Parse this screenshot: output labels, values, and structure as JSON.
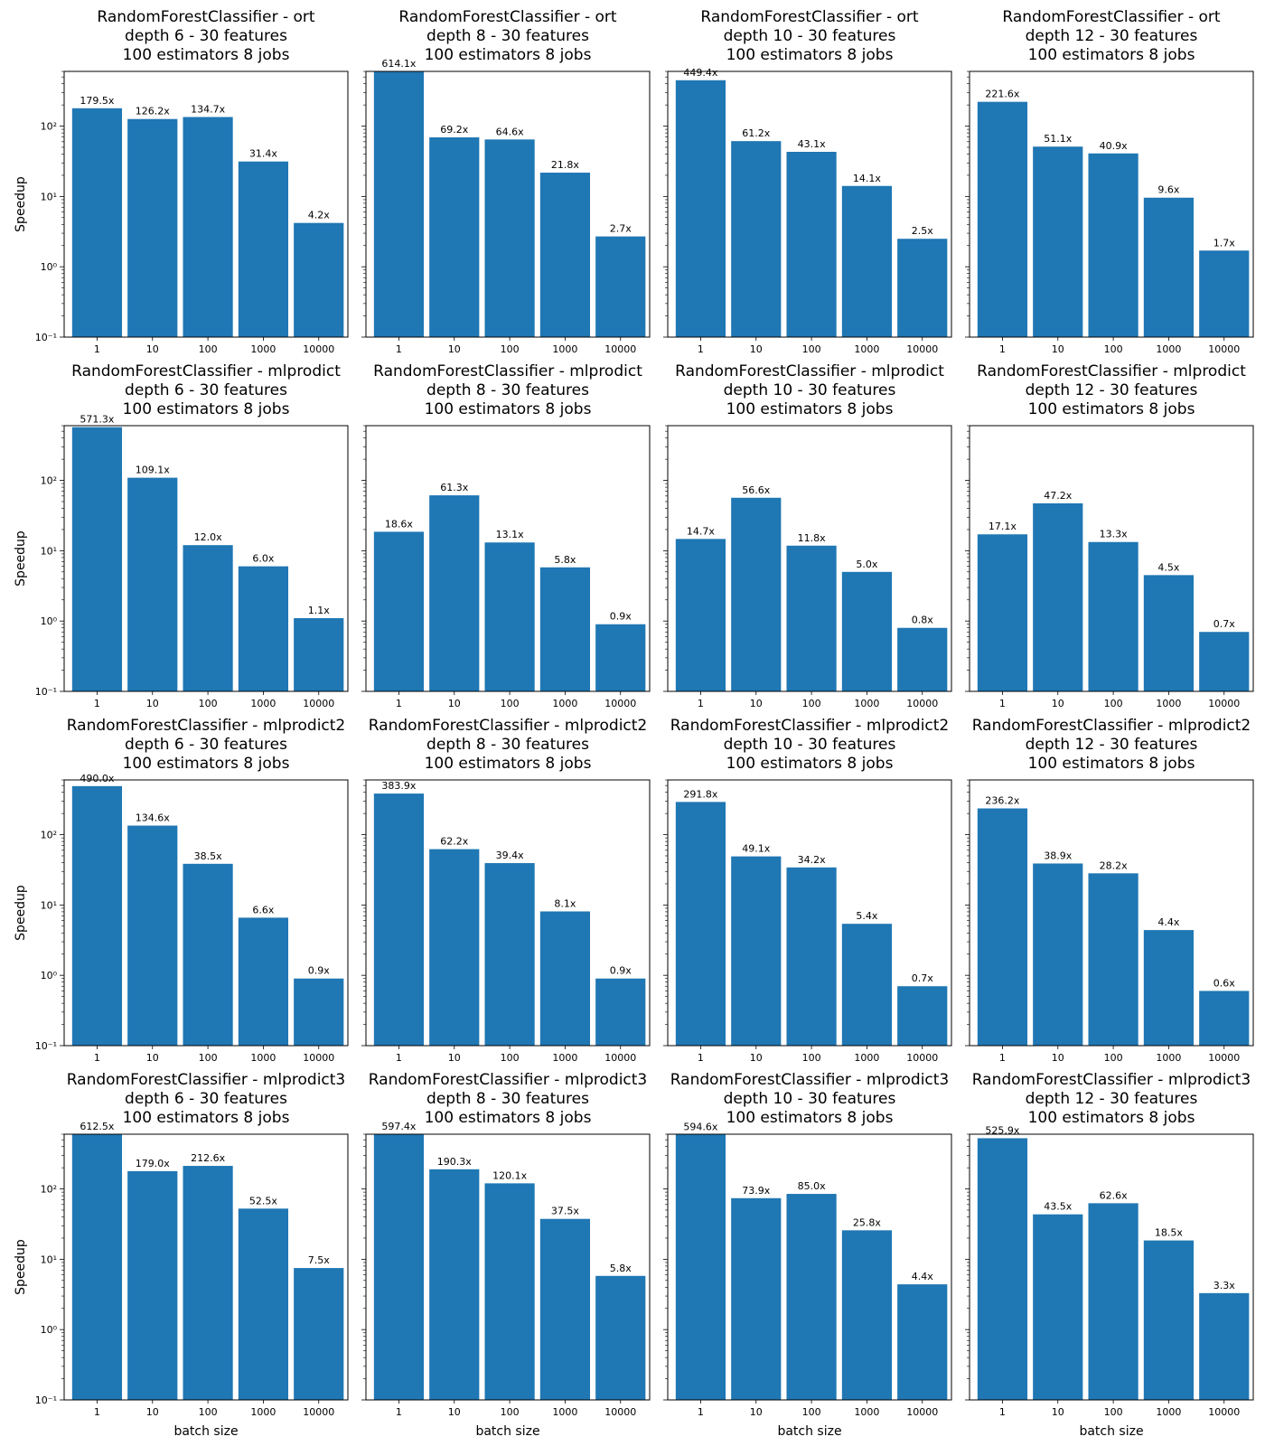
{
  "colors": {
    "bar": "#1f77b4",
    "axes": "#000000",
    "background": "#ffffff"
  },
  "chart_data": [
    {
      "type": "bar",
      "title_lines": [
        "RandomForestClassifier - ort",
        "depth 6 - 30 features",
        "100 estimators 8 jobs"
      ],
      "categories": [
        "1",
        "10",
        "100",
        "1000",
        "10000"
      ],
      "values": [
        179.5,
        126.2,
        134.7,
        31.4,
        4.2
      ],
      "bar_labels": [
        "179.5x",
        "126.2x",
        "134.7x",
        "31.4x",
        "4.2x"
      ],
      "ylabel": "Speedup",
      "xlabel": "",
      "yscale": "log",
      "ylim": [
        0.1,
        600
      ],
      "yticks": [
        "10⁻¹",
        "10⁰",
        "10¹",
        "10²"
      ]
    },
    {
      "type": "bar",
      "title_lines": [
        "RandomForestClassifier - ort",
        "depth 8 - 30 features",
        "100 estimators 8 jobs"
      ],
      "categories": [
        "1",
        "10",
        "100",
        "1000",
        "10000"
      ],
      "values": [
        614.1,
        69.2,
        64.6,
        21.8,
        2.7
      ],
      "bar_labels": [
        "614.1x",
        "69.2x",
        "64.6x",
        "21.8x",
        "2.7x"
      ],
      "ylabel": "",
      "xlabel": "",
      "yscale": "log",
      "ylim": [
        0.1,
        600
      ],
      "yticks": []
    },
    {
      "type": "bar",
      "title_lines": [
        "RandomForestClassifier - ort",
        "depth 10 - 30 features",
        "100 estimators 8 jobs"
      ],
      "categories": [
        "1",
        "10",
        "100",
        "1000",
        "10000"
      ],
      "values": [
        449.4,
        61.2,
        43.1,
        14.1,
        2.5
      ],
      "bar_labels": [
        "449.4x",
        "61.2x",
        "43.1x",
        "14.1x",
        "2.5x"
      ],
      "ylabel": "",
      "xlabel": "",
      "yscale": "log",
      "ylim": [
        0.1,
        600
      ],
      "yticks": []
    },
    {
      "type": "bar",
      "title_lines": [
        "RandomForestClassifier - ort",
        "depth 12 - 30 features",
        "100 estimators 8 jobs"
      ],
      "categories": [
        "1",
        "10",
        "100",
        "1000",
        "10000"
      ],
      "values": [
        221.6,
        51.1,
        40.9,
        9.6,
        1.7
      ],
      "bar_labels": [
        "221.6x",
        "51.1x",
        "40.9x",
        "9.6x",
        "1.7x"
      ],
      "ylabel": "",
      "xlabel": "",
      "yscale": "log",
      "ylim": [
        0.1,
        600
      ],
      "yticks": []
    },
    {
      "type": "bar",
      "title_lines": [
        "RandomForestClassifier - mlprodict",
        "depth 6 - 30 features",
        "100 estimators 8 jobs"
      ],
      "categories": [
        "1",
        "10",
        "100",
        "1000",
        "10000"
      ],
      "values": [
        571.3,
        109.1,
        12.0,
        6.0,
        1.1
      ],
      "bar_labels": [
        "571.3x",
        "109.1x",
        "12.0x",
        "6.0x",
        "1.1x"
      ],
      "ylabel": "Speedup",
      "xlabel": "",
      "yscale": "log",
      "ylim": [
        0.1,
        600
      ],
      "yticks": [
        "10⁻¹",
        "10⁰",
        "10¹",
        "10²"
      ]
    },
    {
      "type": "bar",
      "title_lines": [
        "RandomForestClassifier - mlprodict",
        "depth 8 - 30 features",
        "100 estimators 8 jobs"
      ],
      "categories": [
        "1",
        "10",
        "100",
        "1000",
        "10000"
      ],
      "values": [
        18.6,
        61.3,
        13.1,
        5.8,
        0.9
      ],
      "bar_labels": [
        "18.6x",
        "61.3x",
        "13.1x",
        "5.8x",
        "0.9x"
      ],
      "ylabel": "",
      "xlabel": "",
      "yscale": "log",
      "ylim": [
        0.1,
        600
      ],
      "yticks": []
    },
    {
      "type": "bar",
      "title_lines": [
        "RandomForestClassifier - mlprodict",
        "depth 10 - 30 features",
        "100 estimators 8 jobs"
      ],
      "categories": [
        "1",
        "10",
        "100",
        "1000",
        "10000"
      ],
      "values": [
        14.7,
        56.6,
        11.8,
        5.0,
        0.8
      ],
      "bar_labels": [
        "14.7x",
        "56.6x",
        "11.8x",
        "5.0x",
        "0.8x"
      ],
      "ylabel": "",
      "xlabel": "",
      "yscale": "log",
      "ylim": [
        0.1,
        600
      ],
      "yticks": []
    },
    {
      "type": "bar",
      "title_lines": [
        "RandomForestClassifier - mlprodict",
        "depth 12 - 30 features",
        "100 estimators 8 jobs"
      ],
      "categories": [
        "1",
        "10",
        "100",
        "1000",
        "10000"
      ],
      "values": [
        17.1,
        47.2,
        13.3,
        4.5,
        0.7
      ],
      "bar_labels": [
        "17.1x",
        "47.2x",
        "13.3x",
        "4.5x",
        "0.7x"
      ],
      "ylabel": "",
      "xlabel": "",
      "yscale": "log",
      "ylim": [
        0.1,
        600
      ],
      "yticks": []
    },
    {
      "type": "bar",
      "title_lines": [
        "RandomForestClassifier - mlprodict2",
        "depth 6 - 30 features",
        "100 estimators 8 jobs"
      ],
      "categories": [
        "1",
        "10",
        "100",
        "1000",
        "10000"
      ],
      "values": [
        490.0,
        134.6,
        38.5,
        6.6,
        0.9
      ],
      "bar_labels": [
        "490.0x",
        "134.6x",
        "38.5x",
        "6.6x",
        "0.9x"
      ],
      "ylabel": "Speedup",
      "xlabel": "",
      "yscale": "log",
      "ylim": [
        0.1,
        600
      ],
      "yticks": [
        "10⁻¹",
        "10⁰",
        "10¹",
        "10²"
      ]
    },
    {
      "type": "bar",
      "title_lines": [
        "RandomForestClassifier - mlprodict2",
        "depth 8 - 30 features",
        "100 estimators 8 jobs"
      ],
      "categories": [
        "1",
        "10",
        "100",
        "1000",
        "10000"
      ],
      "values": [
        383.9,
        62.2,
        39.4,
        8.1,
        0.9
      ],
      "bar_labels": [
        "383.9x",
        "62.2x",
        "39.4x",
        "8.1x",
        "0.9x"
      ],
      "ylabel": "",
      "xlabel": "",
      "yscale": "log",
      "ylim": [
        0.1,
        600
      ],
      "yticks": []
    },
    {
      "type": "bar",
      "title_lines": [
        "RandomForestClassifier - mlprodict2",
        "depth 10 - 30 features",
        "100 estimators 8 jobs"
      ],
      "categories": [
        "1",
        "10",
        "100",
        "1000",
        "10000"
      ],
      "values": [
        291.8,
        49.1,
        34.2,
        5.4,
        0.7
      ],
      "bar_labels": [
        "291.8x",
        "49.1x",
        "34.2x",
        "5.4x",
        "0.7x"
      ],
      "ylabel": "",
      "xlabel": "",
      "yscale": "log",
      "ylim": [
        0.1,
        600
      ],
      "yticks": []
    },
    {
      "type": "bar",
      "title_lines": [
        "RandomForestClassifier - mlprodict2",
        "depth 12 - 30 features",
        "100 estimators 8 jobs"
      ],
      "categories": [
        "1",
        "10",
        "100",
        "1000",
        "10000"
      ],
      "values": [
        236.2,
        38.9,
        28.2,
        4.4,
        0.6
      ],
      "bar_labels": [
        "236.2x",
        "38.9x",
        "28.2x",
        "4.4x",
        "0.6x"
      ],
      "ylabel": "",
      "xlabel": "",
      "yscale": "log",
      "ylim": [
        0.1,
        600
      ],
      "yticks": []
    },
    {
      "type": "bar",
      "title_lines": [
        "RandomForestClassifier - mlprodict3",
        "depth 6 - 30 features",
        "100 estimators 8 jobs"
      ],
      "categories": [
        "1",
        "10",
        "100",
        "1000",
        "10000"
      ],
      "values": [
        612.5,
        179.0,
        212.6,
        52.5,
        7.5
      ],
      "bar_labels": [
        "612.5x",
        "179.0x",
        "212.6x",
        "52.5x",
        "7.5x"
      ],
      "ylabel": "Speedup",
      "xlabel": "batch size",
      "yscale": "log",
      "ylim": [
        0.1,
        600
      ],
      "yticks": [
        "10⁻¹",
        "10⁰",
        "10¹",
        "10²"
      ]
    },
    {
      "type": "bar",
      "title_lines": [
        "RandomForestClassifier - mlprodict3",
        "depth 8 - 30 features",
        "100 estimators 8 jobs"
      ],
      "categories": [
        "1",
        "10",
        "100",
        "1000",
        "10000"
      ],
      "values": [
        597.4,
        190.3,
        120.1,
        37.5,
        5.8
      ],
      "bar_labels": [
        "597.4x",
        "190.3x",
        "120.1x",
        "37.5x",
        "5.8x"
      ],
      "ylabel": "",
      "xlabel": "batch size",
      "yscale": "log",
      "ylim": [
        0.1,
        600
      ],
      "yticks": []
    },
    {
      "type": "bar",
      "title_lines": [
        "RandomForestClassifier - mlprodict3",
        "depth 10 - 30 features",
        "100 estimators 8 jobs"
      ],
      "categories": [
        "1",
        "10",
        "100",
        "1000",
        "10000"
      ],
      "values": [
        594.6,
        73.9,
        85.0,
        25.8,
        4.4
      ],
      "bar_labels": [
        "594.6x",
        "73.9x",
        "85.0x",
        "25.8x",
        "4.4x"
      ],
      "ylabel": "",
      "xlabel": "batch size",
      "yscale": "log",
      "ylim": [
        0.1,
        600
      ],
      "yticks": []
    },
    {
      "type": "bar",
      "title_lines": [
        "RandomForestClassifier - mlprodict3",
        "depth 12 - 30 features",
        "100 estimators 8 jobs"
      ],
      "categories": [
        "1",
        "10",
        "100",
        "1000",
        "10000"
      ],
      "values": [
        525.9,
        43.5,
        62.6,
        18.5,
        3.3
      ],
      "bar_labels": [
        "525.9x",
        "43.5x",
        "62.6x",
        "18.5x",
        "3.3x"
      ],
      "ylabel": "",
      "xlabel": "batch size",
      "yscale": "log",
      "ylim": [
        0.1,
        600
      ],
      "yticks": []
    }
  ]
}
